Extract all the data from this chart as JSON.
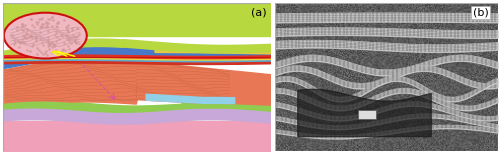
{
  "figsize": [
    5.0,
    1.54
  ],
  "dpi": 100,
  "left_label": "(a)",
  "right_label": "(b)",
  "border_color": "#aaaaaa",
  "label_fontsize": 8
}
